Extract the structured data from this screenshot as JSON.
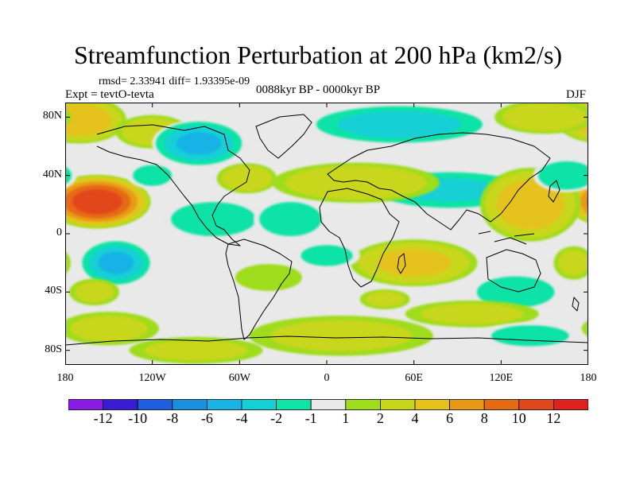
{
  "title": "Streamfunction Perturbation at 200 hPa (km2/s)",
  "stats_line": "rmsd= 2.33941 diff= 1.93395e-09",
  "experiment_label": "Expt = tevtO-tevta",
  "period_label": "0088kyr BP - 0000kyr BP",
  "season_label": "DJF",
  "map": {
    "projection": "cylindrical-equidistant",
    "lon_range": [
      -180,
      180
    ],
    "lat_range": [
      -90,
      90
    ],
    "background": "#e9e9e9",
    "x_ticks": [
      {
        "lon": -180,
        "label": "180"
      },
      {
        "lon": -120,
        "label": "120W"
      },
      {
        "lon": -60,
        "label": "60W"
      },
      {
        "lon": 0,
        "label": "0"
      },
      {
        "lon": 60,
        "label": "60E"
      },
      {
        "lon": 120,
        "label": "120E"
      },
      {
        "lon": 180,
        "label": "180"
      }
    ],
    "y_ticks": [
      {
        "lat": 80,
        "label": "80N"
      },
      {
        "lat": 40,
        "label": "40N"
      },
      {
        "lat": 0,
        "label": "0"
      },
      {
        "lat": -40,
        "label": "40S"
      },
      {
        "lat": -80,
        "label": "80S"
      }
    ],
    "anomalies": [
      {
        "lon": -158,
        "lat": 22,
        "rlon": 32,
        "rlat": 16,
        "value": 11
      },
      {
        "lon": -170,
        "lat": 78,
        "rlon": 28,
        "rlat": 14,
        "value": 5
      },
      {
        "lon": -120,
        "lat": 70,
        "rlon": 22,
        "rlat": 10,
        "value": 3
      },
      {
        "lon": -88,
        "lat": 62,
        "rlon": 28,
        "rlat": 14,
        "value": -6
      },
      {
        "lon": -55,
        "lat": 38,
        "rlon": 18,
        "rlat": 9,
        "value": 3
      },
      {
        "lon": -78,
        "lat": 10,
        "rlon": 30,
        "rlat": 12,
        "value": -3
      },
      {
        "lon": -25,
        "lat": 10,
        "rlon": 22,
        "rlat": 12,
        "value": -3
      },
      {
        "lon": -145,
        "lat": -20,
        "rlon": 22,
        "rlat": 14,
        "value": -6
      },
      {
        "lon": 50,
        "lat": 75,
        "rlon": 55,
        "rlat": 12,
        "value": -5
      },
      {
        "lon": 85,
        "lat": 30,
        "rlon": 50,
        "rlat": 12,
        "value": -4
      },
      {
        "lon": 60,
        "lat": -20,
        "rlon": 38,
        "rlat": 14,
        "value": 4
      },
      {
        "lon": 140,
        "lat": 20,
        "rlon": 30,
        "rlat": 22,
        "value": 5
      },
      {
        "lon": 165,
        "lat": 40,
        "rlon": 20,
        "rlat": 10,
        "value": -3
      },
      {
        "lon": 150,
        "lat": 80,
        "rlon": 30,
        "rlat": 10,
        "value": 3
      },
      {
        "lon": 130,
        "lat": -40,
        "rlon": 30,
        "rlat": 12,
        "value": -2
      },
      {
        "lon": 10,
        "lat": -70,
        "rlon": 55,
        "rlat": 12,
        "value": 2
      },
      {
        "lon": -40,
        "lat": -30,
        "rlon": 20,
        "rlat": 8,
        "value": 1
      },
      {
        "lon": 40,
        "lat": -45,
        "rlon": 15,
        "rlat": 6,
        "value": 2
      },
      {
        "lon": 100,
        "lat": -55,
        "rlon": 40,
        "rlat": 8,
        "value": 2
      },
      {
        "lon": 140,
        "lat": -70,
        "rlon": 30,
        "rlat": 8,
        "value": -2
      },
      {
        "lon": -150,
        "lat": -65,
        "rlon": 30,
        "rlat": 10,
        "value": 2
      },
      {
        "lon": -90,
        "lat": -80,
        "rlon": 40,
        "rlat": 8,
        "value": 2
      },
      {
        "lon": 20,
        "lat": 35,
        "rlon": 50,
        "rlat": 12,
        "value": 3
      },
      {
        "lon": -160,
        "lat": -40,
        "rlon": 15,
        "rlat": 8,
        "value": 2
      },
      {
        "lon": 0,
        "lat": -15,
        "rlon": 20,
        "rlat": 8,
        "value": -2
      },
      {
        "lon": -120,
        "lat": 40,
        "rlon": 15,
        "rlat": 8,
        "value": -2
      },
      {
        "lon": 170,
        "lat": -20,
        "rlon": 12,
        "rlat": 10,
        "value": 2
      }
    ]
  },
  "colorbar": {
    "labels": [
      "-12",
      "-10",
      "-8",
      "-6",
      "-4",
      "-2",
      "-1",
      "1",
      "2",
      "4",
      "6",
      "8",
      "10",
      "12"
    ],
    "colors": [
      "#8a1ae6",
      "#3a1cd6",
      "#1f5ee0",
      "#1a8fe0",
      "#19b4e6",
      "#12d0d6",
      "#10e3a6",
      "#e8e8e8",
      "#9fdc1a",
      "#c8d61a",
      "#e6c21a",
      "#e89a16",
      "#e66a12",
      "#e2461c",
      "#e0201c"
    ]
  }
}
